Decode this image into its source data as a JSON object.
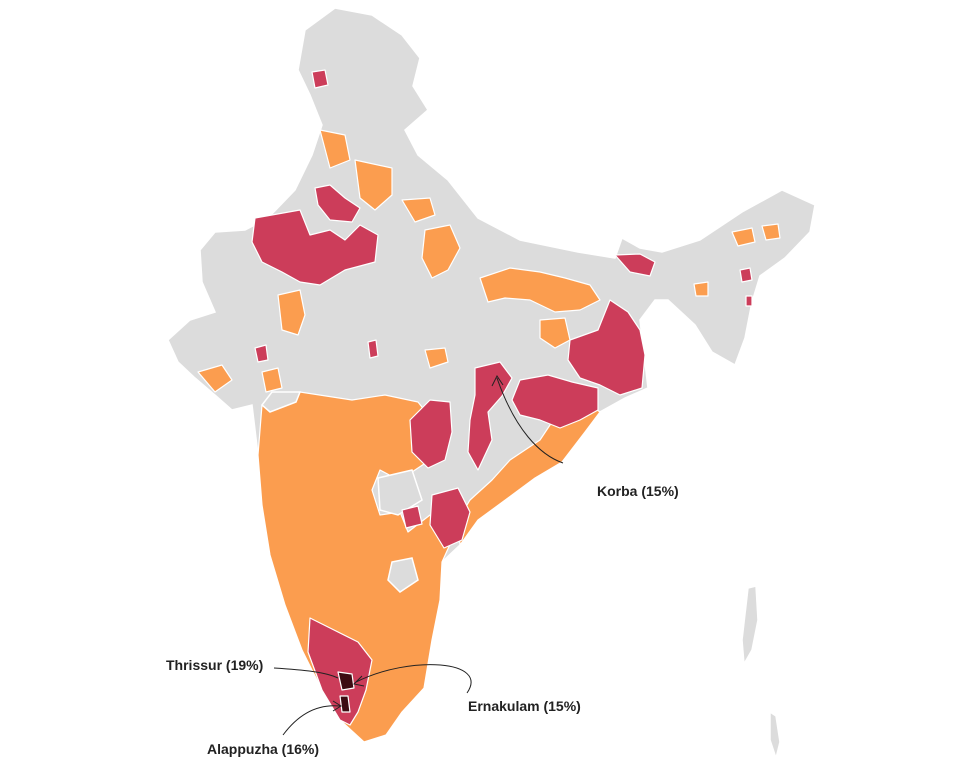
{
  "colors": {
    "base": "#dcdcdc",
    "medium": "#fb9d4f",
    "high": "#cc3d5a",
    "highest": "#3d0b12",
    "border": "#ffffff",
    "text": "#222222"
  },
  "annotations": [
    {
      "id": "korba",
      "text": "Korba (15%)"
    },
    {
      "id": "thrissur",
      "text": "Thrissur (19%)"
    },
    {
      "id": "ernakulam",
      "text": "Ernakulam (15%)"
    },
    {
      "id": "alappuzha",
      "text": "Alappuzha (16%)"
    }
  ]
}
